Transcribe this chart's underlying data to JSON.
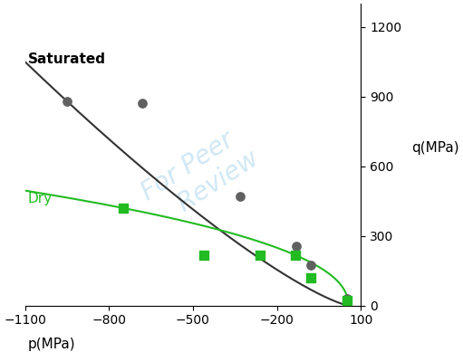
{
  "title": "",
  "xlabel": "p(MPa)",
  "ylabel": "q(MPa)",
  "xlim": [
    -1100,
    100
  ],
  "ylim": [
    0,
    1300
  ],
  "xticks": [
    -1100,
    -800,
    -500,
    -200,
    100
  ],
  "yticks": [
    0,
    300,
    600,
    900,
    1200
  ],
  "saturated_label": "Saturated",
  "dry_label": "Dry",
  "saturated_color": "#606060",
  "dry_color": "#22bb22",
  "saturated_line_color": "#333333",
  "dry_line_color": "#22bb22",
  "sat_data_x": [
    -950,
    -680,
    -330,
    -130,
    -80,
    50
  ],
  "sat_data_y": [
    880,
    870,
    470,
    255,
    175,
    30
  ],
  "dry_data_x": [
    -750,
    -460,
    -260,
    -135,
    -80,
    50
  ],
  "dry_data_y": [
    420,
    215,
    215,
    215,
    120,
    20
  ],
  "background_color": "#ffffff",
  "watermark_color": "#b0d8ee",
  "label_fontsize": 11,
  "tick_fontsize": 10,
  "sat_curve_p_R": 55,
  "sat_curve_C": 4.95,
  "dry_curve_p_R": 55,
  "dry_curve_C": 0.72,
  "dry_curve_n": 0.55
}
